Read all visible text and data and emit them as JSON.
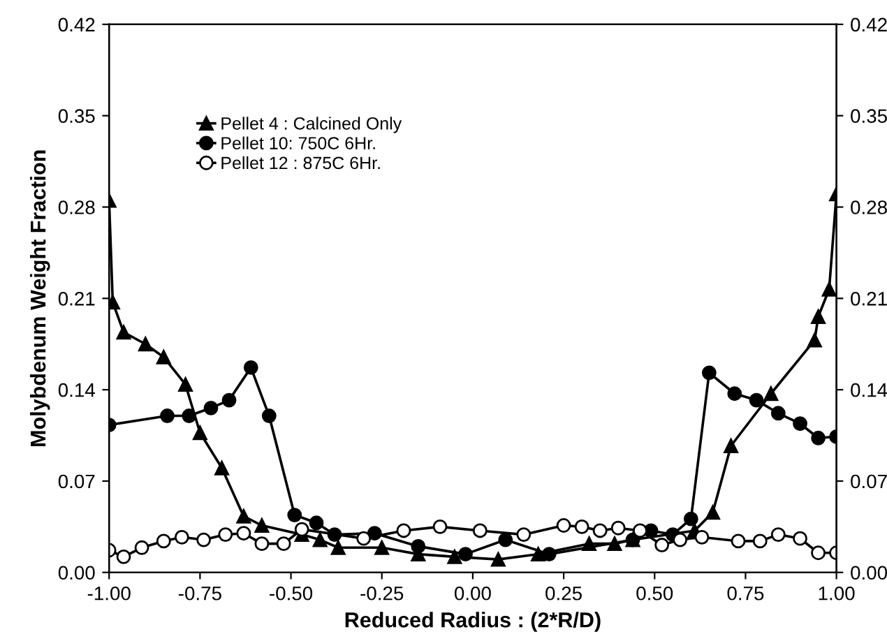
{
  "chart_data": {
    "type": "line",
    "xlabel": "Reduced Radius : (2*R/D)",
    "ylabel": "Molybdenum Weight Fraction",
    "xlim": [
      -1.0,
      1.0
    ],
    "ylim": [
      0.0,
      0.42
    ],
    "y2lim": [
      0.0,
      0.42
    ],
    "xticks": [
      {
        "value": -1.0,
        "label": "-1.00"
      },
      {
        "value": -0.75,
        "label": "-0.75"
      },
      {
        "value": -0.5,
        "label": "-0.50"
      },
      {
        "value": -0.25,
        "label": "-0.25"
      },
      {
        "value": 0.0,
        "label": "0.00"
      },
      {
        "value": 0.25,
        "label": "0.25"
      },
      {
        "value": 0.5,
        "label": "0.50"
      },
      {
        "value": 0.75,
        "label": "0.75"
      },
      {
        "value": 1.0,
        "label": "1.00"
      }
    ],
    "yticks": [
      {
        "value": 0.0,
        "label": "0.00"
      },
      0.07,
      0.14,
      0.21,
      0.28,
      0.35,
      0.42
    ],
    "y2ticks": [
      {
        "value": 0.0,
        "label": "0.00"
      },
      0.07,
      0.14,
      0.21,
      0.28,
      0.35,
      0.42
    ],
    "legend": "top left",
    "grid": false,
    "line_style": "solid",
    "series": [
      {
        "name": "Pellet 4 : Calcined Only",
        "color": "#000000",
        "marker": "triangle",
        "x": [
          -1.0,
          -0.99,
          -0.96,
          -0.9,
          -0.85,
          -0.79,
          -0.75,
          -0.69,
          -0.63,
          -0.58,
          -0.47,
          -0.42,
          -0.37,
          -0.25,
          -0.15,
          -0.05,
          0.07,
          0.18,
          0.32,
          0.39,
          0.44,
          0.61,
          0.66,
          0.71,
          0.82,
          0.94,
          0.95,
          0.98,
          1.0
        ],
        "values": [
          0.285,
          0.207,
          0.184,
          0.175,
          0.165,
          0.144,
          0.107,
          0.08,
          0.043,
          0.036,
          0.029,
          0.025,
          0.019,
          0.019,
          0.014,
          0.012,
          0.01,
          0.014,
          0.022,
          0.022,
          0.025,
          0.032,
          0.046,
          0.097,
          0.137,
          0.178,
          0.196,
          0.217,
          0.29
        ]
      },
      {
        "name": "Pellet 10: 750C 6Hr.",
        "color": "#000000",
        "marker": "circle",
        "x": [
          -1.0,
          -0.84,
          -0.78,
          -0.72,
          -0.67,
          -0.61,
          -0.56,
          -0.49,
          -0.43,
          -0.38,
          -0.27,
          -0.15,
          -0.02,
          0.09,
          0.21,
          0.44,
          0.49,
          0.55,
          0.6,
          0.65,
          0.72,
          0.78,
          0.84,
          0.9,
          0.95,
          1.0
        ],
        "values": [
          0.113,
          0.12,
          0.12,
          0.126,
          0.132,
          0.157,
          0.12,
          0.044,
          0.038,
          0.029,
          0.03,
          0.02,
          0.014,
          0.025,
          0.014,
          0.025,
          0.032,
          0.029,
          0.041,
          0.153,
          0.137,
          0.132,
          0.122,
          0.114,
          0.103,
          0.104
        ]
      },
      {
        "name": "Pellet 12 : 875C 6Hr.",
        "color": "#ffffff",
        "marker": "circle",
        "x": [
          -1.0,
          -0.96,
          -0.91,
          -0.85,
          -0.8,
          -0.74,
          -0.68,
          -0.63,
          -0.58,
          -0.52,
          -0.47,
          -0.3,
          -0.19,
          -0.09,
          0.02,
          0.14,
          0.25,
          0.3,
          0.35,
          0.4,
          0.46,
          0.52,
          0.57,
          0.63,
          0.73,
          0.79,
          0.84,
          0.9,
          0.95,
          1.0
        ],
        "values": [
          0.017,
          0.012,
          0.019,
          0.024,
          0.027,
          0.025,
          0.029,
          0.03,
          0.022,
          0.022,
          0.033,
          0.026,
          0.032,
          0.035,
          0.032,
          0.029,
          0.036,
          0.035,
          0.032,
          0.034,
          0.032,
          0.021,
          0.025,
          0.027,
          0.024,
          0.024,
          0.029,
          0.026,
          0.015,
          0.015
        ]
      }
    ]
  }
}
